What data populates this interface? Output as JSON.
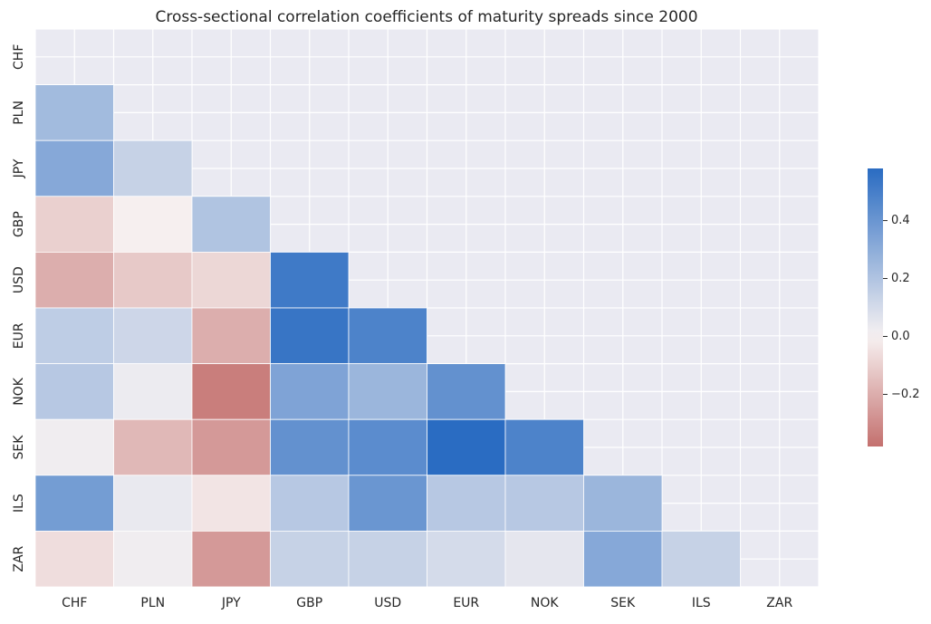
{
  "chart_data": {
    "type": "heatmap",
    "title": "Cross-sectional correlation coefficients of maturity spreads since 2000",
    "xlabel": "",
    "ylabel": "",
    "rows": [
      "CHF",
      "PLN",
      "JPY",
      "GBP",
      "USD",
      "EUR",
      "NOK",
      "SEK",
      "ILS",
      "ZAR"
    ],
    "columns": [
      "CHF",
      "PLN",
      "JPY",
      "GBP",
      "USD",
      "EUR",
      "NOK",
      "SEK",
      "ILS",
      "ZAR"
    ],
    "mask": "upper triangle including diagonal",
    "values": [
      [
        null,
        null,
        null,
        null,
        null,
        null,
        null,
        null,
        null,
        null
      ],
      [
        0.24,
        null,
        null,
        null,
        null,
        null,
        null,
        null,
        null,
        null
      ],
      [
        0.32,
        0.14,
        null,
        null,
        null,
        null,
        null,
        null,
        null,
        null
      ],
      [
        -0.1,
        -0.01,
        0.2,
        null,
        null,
        null,
        null,
        null,
        null,
        null
      ],
      [
        -0.2,
        -0.12,
        -0.08,
        0.52,
        null,
        null,
        null,
        null,
        null,
        null
      ],
      [
        0.16,
        0.12,
        -0.2,
        0.54,
        0.48,
        null,
        null,
        null,
        null,
        null
      ],
      [
        0.18,
        0.03,
        -0.34,
        0.34,
        0.26,
        0.42,
        null,
        null,
        null,
        null
      ],
      [
        0.02,
        -0.17,
        -0.26,
        0.42,
        0.44,
        0.58,
        0.48,
        null,
        null,
        null
      ],
      [
        0.37,
        0.04,
        -0.04,
        0.18,
        0.4,
        0.18,
        0.18,
        0.26,
        null,
        null
      ],
      [
        -0.06,
        0.02,
        -0.26,
        0.14,
        0.14,
        0.1,
        0.05,
        0.32,
        0.14,
        null
      ]
    ],
    "colorbar": {
      "min": -0.38,
      "max": 0.58,
      "ticks": [
        -0.2,
        0.0,
        0.2,
        0.4
      ],
      "tick_labels": [
        "−0.2",
        "0.0",
        "0.2",
        "0.4"
      ]
    },
    "colormap": {
      "negative": "#c4706e",
      "center": "#f7f2f2",
      "positive": "#2a6cc2"
    },
    "background_color": "#eaeaf2",
    "grid": true
  }
}
